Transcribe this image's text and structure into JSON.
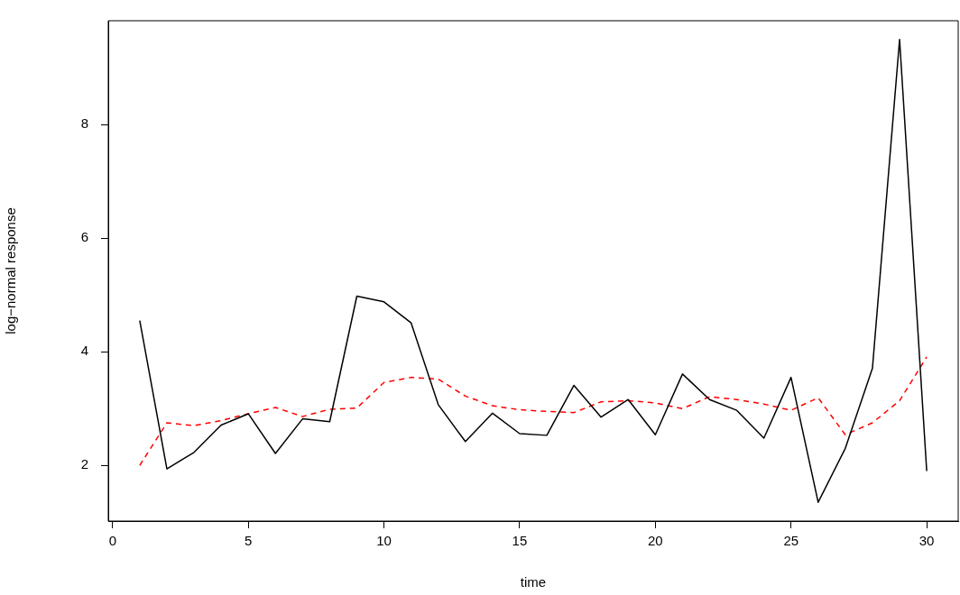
{
  "chart_data": {
    "type": "line",
    "xlabel": "time",
    "ylabel": "log−normal response",
    "x": [
      1,
      2,
      3,
      4,
      5,
      6,
      7,
      8,
      9,
      10,
      11,
      12,
      13,
      14,
      15,
      16,
      17,
      18,
      19,
      20,
      21,
      22,
      23,
      24,
      25,
      26,
      27,
      28,
      29,
      30
    ],
    "series": [
      {
        "color": "#000000",
        "line_style": "solid",
        "values": [
          4.55,
          1.94,
          2.23,
          2.71,
          2.91,
          2.21,
          2.82,
          2.77,
          4.98,
          4.88,
          4.51,
          3.07,
          2.42,
          2.92,
          2.56,
          2.53,
          3.41,
          2.85,
          3.16,
          2.54,
          3.61,
          3.16,
          2.97,
          2.48,
          3.55,
          1.35,
          2.3,
          3.71,
          9.5,
          1.9
        ]
      },
      {
        "color": "#ff0000",
        "line_style": "dashed",
        "values": [
          2.0,
          2.75,
          2.7,
          2.79,
          2.91,
          3.02,
          2.86,
          2.99,
          3.01,
          3.46,
          3.55,
          3.52,
          3.22,
          3.05,
          2.98,
          2.95,
          2.93,
          3.12,
          3.14,
          3.1,
          3.0,
          3.21,
          3.16,
          3.08,
          2.97,
          3.19,
          2.54,
          2.75,
          3.14,
          3.91
        ]
      }
    ],
    "xlim": [
      -0.16,
      31.16
    ],
    "ylim": [
      1.02,
      9.83
    ],
    "xticks": [
      0,
      5,
      10,
      15,
      20,
      25,
      30
    ],
    "yticks": [
      2,
      4,
      6,
      8
    ],
    "grid": false,
    "legend": false,
    "marker": "none"
  }
}
